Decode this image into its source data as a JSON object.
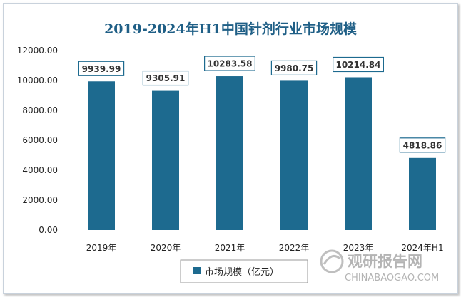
{
  "chart_data": {
    "type": "bar",
    "title": "2019-2024年H1中国针剂行业市场规模",
    "categories": [
      "2019年",
      "2020年",
      "2021年",
      "2022年",
      "2023年",
      "2024年H1"
    ],
    "series": [
      {
        "name": "市场规模（亿元）",
        "values": [
          9939.99,
          9305.91,
          10283.58,
          9980.75,
          10214.84,
          4818.86
        ]
      }
    ],
    "data_labels": [
      "9939.99",
      "9305.91",
      "10283.58",
      "9980.75",
      "10214.84",
      "4818.86"
    ],
    "yticks": [
      "0.00",
      "2000.00",
      "4000.00",
      "6000.00",
      "8000.00",
      "10000.00",
      "12000.00"
    ],
    "ylim": [
      0,
      12000
    ],
    "xlabel": "",
    "ylabel": "",
    "grid": false,
    "legend": "bottom",
    "colors": {
      "bar": "#1d6a8f",
      "title": "#1f5f86",
      "label_border": "#1d6a8f"
    }
  },
  "watermark": {
    "cn": "观研报告网",
    "en": "CHINABAOGAO.COM"
  }
}
